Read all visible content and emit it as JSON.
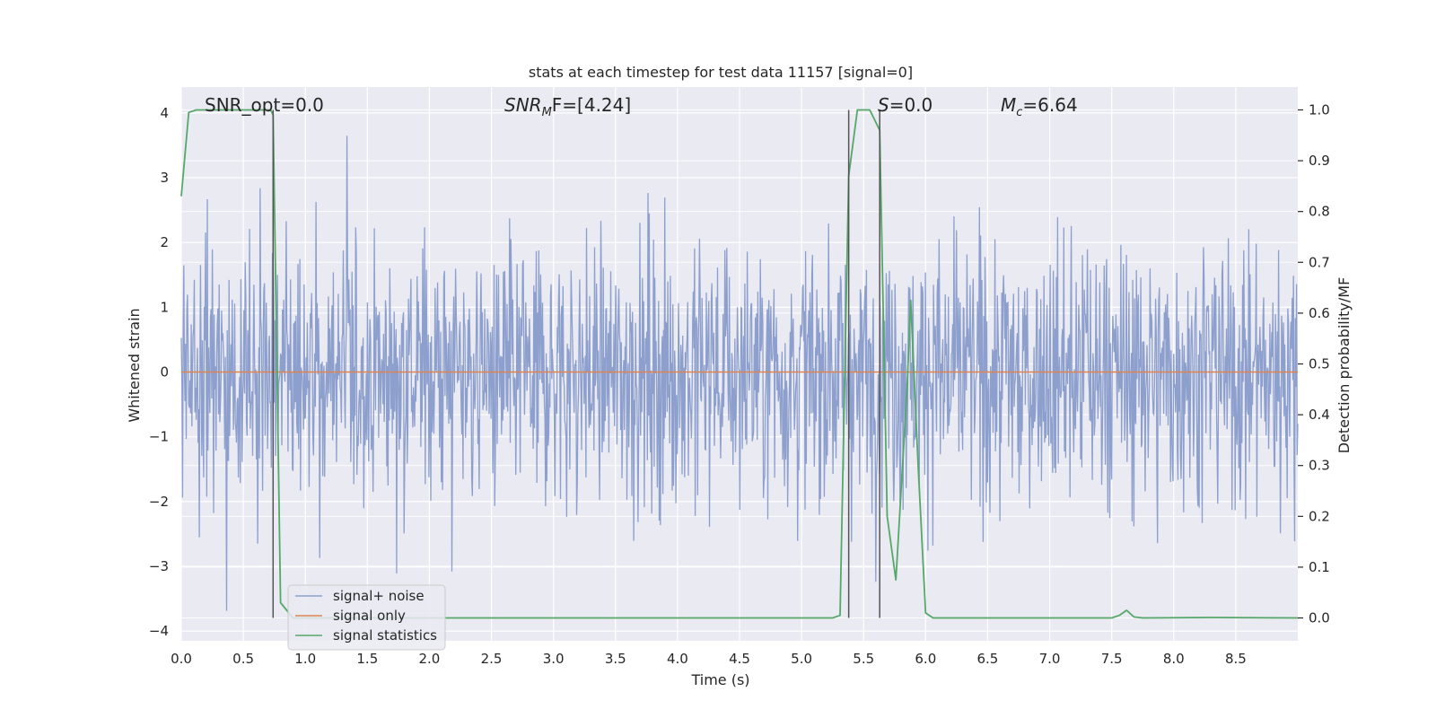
{
  "chart_data": {
    "type": "line",
    "title": "stats at each timestep for test data 11157 [signal=0]",
    "xlabel": "Time (s)",
    "ylabel": "Whitened strain",
    "y2label": "Detection probability/MF",
    "xlim": [
      0,
      9.0
    ],
    "ylim": [
      -4.15,
      4.4
    ],
    "y2lim": [
      -0.045,
      1.045
    ],
    "xticks": [
      0.0,
      0.5,
      1.0,
      1.5,
      2.0,
      2.5,
      3.0,
      3.5,
      4.0,
      4.5,
      5.0,
      5.5,
      6.0,
      6.5,
      7.0,
      7.5,
      8.0,
      8.5
    ],
    "xtick_labels": [
      "0.0",
      "0.5",
      "1.0",
      "1.5",
      "2.0",
      "2.5",
      "3.0",
      "3.5",
      "4.0",
      "4.5",
      "5.0",
      "5.5",
      "6.0",
      "6.5",
      "7.0",
      "7.5",
      "8.0",
      "8.5"
    ],
    "yticks": [
      4,
      3,
      2,
      1,
      0,
      -1,
      -2,
      -3,
      -4
    ],
    "ytick_labels": [
      "4",
      "3",
      "2",
      "1",
      "0",
      "−1",
      "−2",
      "−3",
      "−4"
    ],
    "y2ticks": [
      1.0,
      0.9,
      0.8,
      0.7,
      0.6,
      0.5,
      0.4,
      0.3,
      0.2,
      0.1,
      0.0
    ],
    "y2tick_labels": [
      "1.0",
      "0.9",
      "0.8",
      "0.7",
      "0.6",
      "0.5",
      "0.4",
      "0.3",
      "0.2",
      "0.1",
      "0.0"
    ],
    "annotations": {
      "snr_opt": "SNR_opt=0.0",
      "snr_mf_prefix": "SNR",
      "snr_mf_sub": "M",
      "snr_mf_suffix": "F=[4.24]",
      "s_prefix": "S",
      "s_suffix": "=0.0",
      "mc_prefix": "M",
      "mc_sub": "c",
      "mc_suffix": "=6.64"
    },
    "vertical_lines": [
      {
        "x": 0.74,
        "y2_range": [
          0.0,
          1.0
        ]
      },
      {
        "x": 5.38,
        "y2_range": [
          0.0,
          1.0
        ]
      },
      {
        "x": 5.63,
        "y2_range": [
          0.0,
          1.0
        ]
      }
    ],
    "series": [
      {
        "name": "signal+ noise",
        "axis": "left",
        "color": "#8c9fcd",
        "description": "whitened strain noise, approx. ±1.3 typical, peaks to ±3.5",
        "typical_amplitude": 1.3,
        "n_samples": 1800
      },
      {
        "name": "signal only",
        "axis": "left",
        "color": "#dd8452",
        "x": [
          0.0,
          9.0
        ],
        "y": [
          0.0,
          0.0
        ]
      },
      {
        "name": "signal statistics",
        "axis": "right",
        "color": "#55a868",
        "x": [
          0.0,
          0.06,
          0.12,
          0.72,
          0.74,
          0.8,
          0.9,
          1.0,
          5.25,
          5.31,
          5.38,
          5.45,
          5.55,
          5.63,
          5.69,
          5.76,
          5.85,
          5.88,
          5.94,
          6.0,
          6.06,
          6.2,
          7.5,
          7.56,
          7.62,
          7.68,
          7.75,
          8.3,
          9.0
        ],
        "y": [
          0.83,
          0.995,
          1.0,
          1.0,
          0.99,
          0.03,
          0.0,
          0.0,
          0.0,
          0.005,
          0.87,
          1.0,
          1.0,
          0.96,
          0.2,
          0.075,
          0.45,
          0.625,
          0.3,
          0.01,
          0.0,
          0.0,
          0.0,
          0.005,
          0.015,
          0.002,
          0.0,
          0.001,
          0.0
        ]
      }
    ],
    "legend": {
      "position": "lower-left",
      "entries": [
        "signal+ noise",
        "signal only",
        "signal statistics"
      ]
    },
    "grid": true,
    "background_color": "#eaeaf2",
    "grid_color": "#ffffff"
  }
}
